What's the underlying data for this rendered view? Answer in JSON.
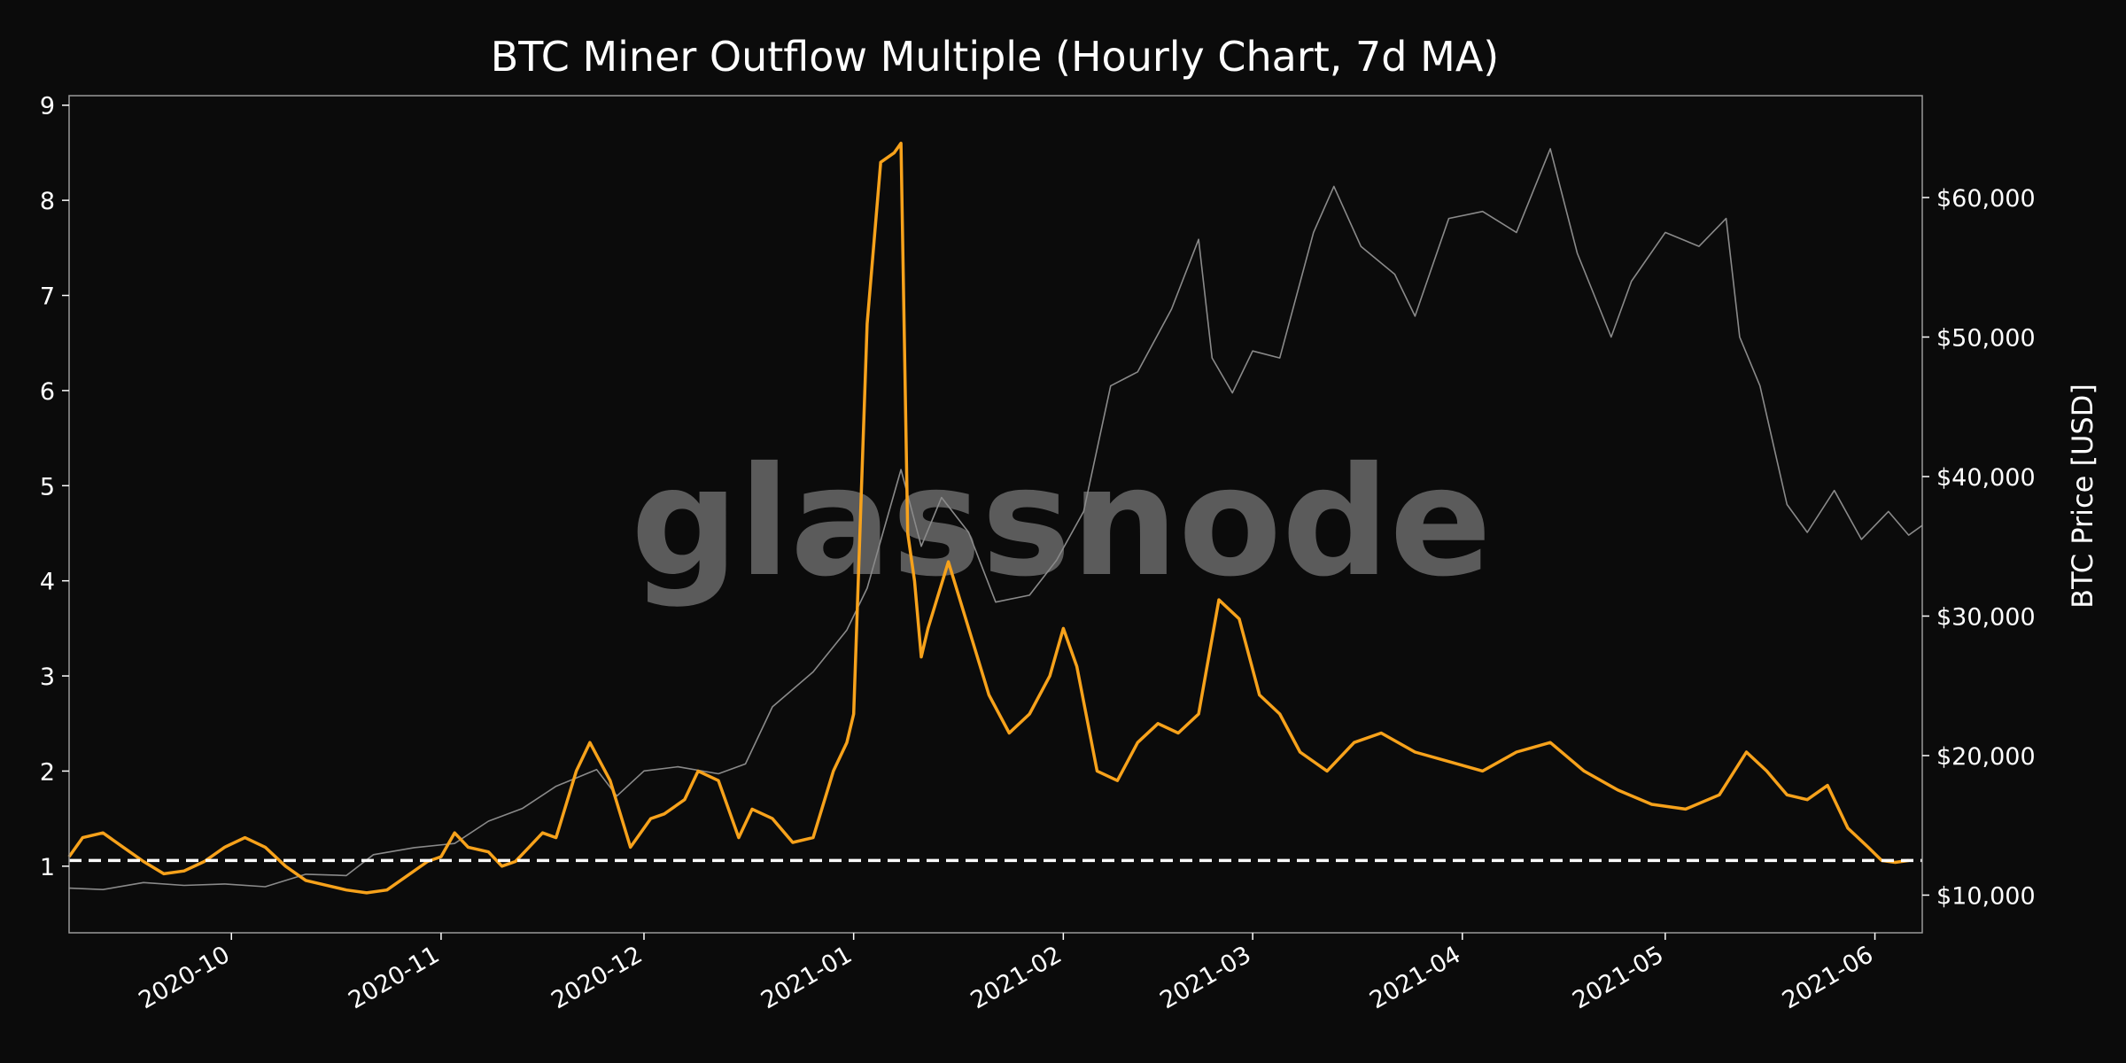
{
  "watermark": "glassnode",
  "colors": {
    "background": "#0b0b0b",
    "axes_background": "#0b0b0b",
    "primary_series": "#f7a21b",
    "price_series": "#8a8a8a",
    "reference_line": "#ffffff",
    "spine": "#9a9a9a"
  },
  "chart_data": {
    "type": "line",
    "title": "BTC Miner Outflow Multiple (Hourly Chart, 7d MA)",
    "xlabel": "",
    "x_range": [
      "2020-09-07",
      "2021-06-08"
    ],
    "x_ticks": [
      "2020-10",
      "2020-11",
      "2020-12",
      "2021-01",
      "2021-02",
      "2021-03",
      "2021-04",
      "2021-05",
      "2021-06"
    ],
    "y_left": {
      "label": "",
      "range": [
        0.3,
        9.1
      ],
      "ticks": [
        1,
        2,
        3,
        4,
        5,
        6,
        7,
        8,
        9
      ]
    },
    "y_right": {
      "label": "BTC Price [USD]",
      "range": [
        7300,
        67300
      ],
      "ticks": [
        10000,
        20000,
        30000,
        40000,
        50000,
        60000
      ],
      "tick_labels": [
        "$10,000",
        "$20,000",
        "$30,000",
        "$40,000",
        "$50,000",
        "$60,000"
      ]
    },
    "reference_line": {
      "axis": "left",
      "value": 1.06,
      "style": "dashed"
    },
    "grid": false,
    "legend": "none",
    "series": [
      {
        "axis": "left",
        "color": "#f7a21b",
        "x": [
          "2020-09-07",
          "2020-09-09",
          "2020-09-12",
          "2020-09-15",
          "2020-09-18",
          "2020-09-21",
          "2020-09-24",
          "2020-09-27",
          "2020-09-30",
          "2020-10-03",
          "2020-10-06",
          "2020-10-09",
          "2020-10-12",
          "2020-10-15",
          "2020-10-18",
          "2020-10-21",
          "2020-10-24",
          "2020-10-27",
          "2020-10-30",
          "2020-11-01",
          "2020-11-03",
          "2020-11-05",
          "2020-11-08",
          "2020-11-10",
          "2020-11-12",
          "2020-11-14",
          "2020-11-16",
          "2020-11-18",
          "2020-11-21",
          "2020-11-23",
          "2020-11-26",
          "2020-11-29",
          "2020-12-02",
          "2020-12-04",
          "2020-12-07",
          "2020-12-09",
          "2020-12-12",
          "2020-12-15",
          "2020-12-17",
          "2020-12-20",
          "2020-12-23",
          "2020-12-26",
          "2020-12-29",
          "2020-12-31",
          "2021-01-01",
          "2021-01-03",
          "2021-01-05",
          "2021-01-07",
          "2021-01-08",
          "2021-01-09",
          "2021-01-10",
          "2021-01-11",
          "2021-01-12",
          "2021-01-15",
          "2021-01-18",
          "2021-01-21",
          "2021-01-24",
          "2021-01-27",
          "2021-01-30",
          "2021-02-01",
          "2021-02-03",
          "2021-02-06",
          "2021-02-09",
          "2021-02-12",
          "2021-02-15",
          "2021-02-18",
          "2021-02-21",
          "2021-02-24",
          "2021-02-27",
          "2021-03-02",
          "2021-03-05",
          "2021-03-08",
          "2021-03-12",
          "2021-03-16",
          "2021-03-20",
          "2021-03-25",
          "2021-03-30",
          "2021-04-04",
          "2021-04-09",
          "2021-04-14",
          "2021-04-19",
          "2021-04-24",
          "2021-04-29",
          "2021-05-04",
          "2021-05-09",
          "2021-05-13",
          "2021-05-16",
          "2021-05-19",
          "2021-05-22",
          "2021-05-25",
          "2021-05-28",
          "2021-05-31",
          "2021-06-02",
          "2021-06-04",
          "2021-06-06"
        ],
        "y": [
          1.1,
          1.3,
          1.35,
          1.2,
          1.05,
          0.92,
          0.95,
          1.05,
          1.2,
          1.3,
          1.2,
          1.0,
          0.85,
          0.8,
          0.75,
          0.72,
          0.75,
          0.9,
          1.05,
          1.1,
          1.35,
          1.2,
          1.15,
          1.0,
          1.05,
          1.2,
          1.35,
          1.3,
          2.0,
          2.3,
          1.9,
          1.2,
          1.5,
          1.55,
          1.7,
          2.0,
          1.9,
          1.3,
          1.6,
          1.5,
          1.25,
          1.3,
          2.0,
          2.3,
          2.6,
          6.7,
          8.4,
          8.5,
          8.6,
          4.5,
          4.0,
          3.2,
          3.5,
          4.2,
          3.5,
          2.8,
          2.4,
          2.6,
          3.0,
          3.5,
          3.1,
          2.0,
          1.9,
          2.3,
          2.5,
          2.4,
          2.6,
          3.8,
          3.6,
          2.8,
          2.6,
          2.2,
          2.0,
          2.3,
          2.4,
          2.2,
          2.1,
          2.0,
          2.2,
          2.3,
          2.0,
          1.8,
          1.65,
          1.6,
          1.75,
          2.2,
          2.0,
          1.75,
          1.7,
          1.85,
          1.4,
          1.2,
          1.06,
          1.04,
          1.06
        ]
      },
      {
        "axis": "right",
        "color": "#8a8a8a",
        "x": [
          "2020-09-07",
          "2020-09-12",
          "2020-09-18",
          "2020-09-24",
          "2020-09-30",
          "2020-10-06",
          "2020-10-12",
          "2020-10-18",
          "2020-10-22",
          "2020-10-28",
          "2020-11-03",
          "2020-11-08",
          "2020-11-13",
          "2020-11-18",
          "2020-11-24",
          "2020-11-27",
          "2020-12-01",
          "2020-12-06",
          "2020-12-12",
          "2020-12-16",
          "2020-12-20",
          "2020-12-26",
          "2020-12-31",
          "2021-01-03",
          "2021-01-08",
          "2021-01-11",
          "2021-01-14",
          "2021-01-18",
          "2021-01-22",
          "2021-01-27",
          "2021-01-31",
          "2021-02-04",
          "2021-02-08",
          "2021-02-12",
          "2021-02-17",
          "2021-02-21",
          "2021-02-23",
          "2021-02-26",
          "2021-03-01",
          "2021-03-05",
          "2021-03-10",
          "2021-03-13",
          "2021-03-17",
          "2021-03-22",
          "2021-03-25",
          "2021-03-30",
          "2021-04-04",
          "2021-04-09",
          "2021-04-14",
          "2021-04-18",
          "2021-04-23",
          "2021-04-26",
          "2021-05-01",
          "2021-05-06",
          "2021-05-10",
          "2021-05-12",
          "2021-05-15",
          "2021-05-19",
          "2021-05-22",
          "2021-05-26",
          "2021-05-30",
          "2021-06-03",
          "2021-06-06",
          "2021-06-08"
        ],
        "y": [
          10500,
          10400,
          10900,
          10700,
          10800,
          10600,
          11500,
          11400,
          12900,
          13400,
          13700,
          15300,
          16200,
          17800,
          19000,
          17100,
          18900,
          19200,
          18700,
          19400,
          23500,
          26000,
          29000,
          32000,
          40500,
          35000,
          38500,
          36000,
          31000,
          31500,
          34000,
          37500,
          46500,
          47500,
          52000,
          57000,
          48500,
          46000,
          49000,
          48500,
          57500,
          60800,
          56500,
          54500,
          51500,
          58500,
          59000,
          57500,
          63500,
          56000,
          50000,
          54000,
          57500,
          56500,
          58500,
          50000,
          46500,
          38000,
          36000,
          39000,
          35500,
          37500,
          35800,
          36500
        ]
      }
    ]
  }
}
